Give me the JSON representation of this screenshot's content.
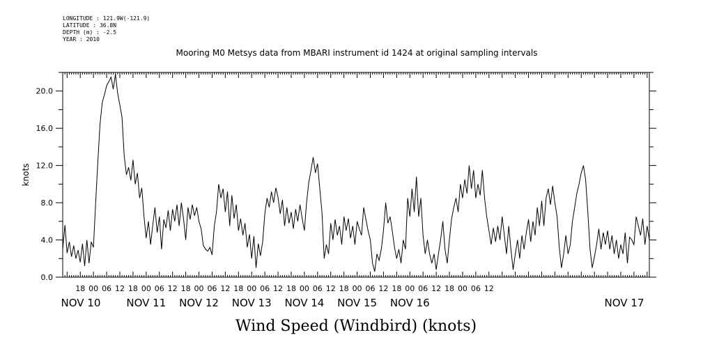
{
  "meta": {
    "longitude": "LONGITUDE : 121.9W(-121.9)",
    "latitude": "LATITUDE : 36.8N",
    "depth": "DEPTH (m) : -2.5",
    "year": "YEAR : 2010"
  },
  "chart_data": {
    "type": "line",
    "title": "Mooring M0 Metsys data from MBARI instrument id 1424 at original sampling intervals",
    "xlabel": "Wind Speed (Windbird) (knots)",
    "ylabel": "knots",
    "ylim": [
      0,
      22
    ],
    "xlim_hours_from_nov10_00": [
      -14,
      253
    ],
    "y_ticks": [
      "0.0",
      "4.0",
      "8.0",
      "12.0",
      "16.0",
      "20.0"
    ],
    "x_hour_ticks": [
      "18",
      "00",
      "06",
      "12",
      "18",
      "00",
      "06",
      "12",
      "18",
      "00",
      "06",
      "12",
      "18",
      "00",
      "06",
      "12",
      "18",
      "00",
      "06",
      "12",
      "18",
      "00",
      "06",
      "12",
      "18",
      "00",
      "06",
      "12",
      "18",
      "00",
      "06",
      "12"
    ],
    "x_day_labels": [
      "NOV 10",
      "NOV 11",
      "NOV 12",
      "NOV 13",
      "NOV 14",
      "NOV 15",
      "NOV 16",
      "NOV 17"
    ],
    "grid": false,
    "series": [
      {
        "x_unit": "hours since NOV 10 00:00",
        "points": [
          [
            -14,
            3.0
          ],
          [
            -13,
            5.6
          ],
          [
            -12,
            2.6
          ],
          [
            -11,
            3.8
          ],
          [
            -10,
            2.2
          ],
          [
            -9,
            3.4
          ],
          [
            -8,
            2.0
          ],
          [
            -7,
            2.9
          ],
          [
            -6,
            1.6
          ],
          [
            -5,
            3.6
          ],
          [
            -4,
            1.2
          ],
          [
            -3,
            4.0
          ],
          [
            -2,
            1.5
          ],
          [
            -1,
            3.8
          ],
          [
            0,
            3.2
          ],
          [
            1,
            8.0
          ],
          [
            2,
            12.5
          ],
          [
            3,
            16.5
          ],
          [
            4,
            18.8
          ],
          [
            5,
            19.6
          ],
          [
            6,
            20.6
          ],
          [
            7,
            21.0
          ],
          [
            8,
            21.5
          ],
          [
            9,
            20.2
          ],
          [
            10,
            21.8
          ],
          [
            11,
            19.8
          ],
          [
            12,
            18.5
          ],
          [
            13,
            17.2
          ],
          [
            14,
            13.0
          ],
          [
            15,
            11.0
          ],
          [
            16,
            11.8
          ],
          [
            17,
            10.4
          ],
          [
            18,
            12.6
          ],
          [
            19,
            10.0
          ],
          [
            20,
            11.2
          ],
          [
            21,
            8.5
          ],
          [
            22,
            9.6
          ],
          [
            23,
            6.5
          ],
          [
            24,
            4.2
          ],
          [
            25,
            6.0
          ],
          [
            26,
            3.5
          ],
          [
            27,
            5.6
          ],
          [
            28,
            7.5
          ],
          [
            29,
            4.8
          ],
          [
            30,
            6.5
          ],
          [
            31,
            3.0
          ],
          [
            32,
            6.2
          ],
          [
            33,
            5.3
          ],
          [
            34,
            7.2
          ],
          [
            35,
            5.0
          ],
          [
            36,
            7.3
          ],
          [
            37,
            6.0
          ],
          [
            38,
            7.8
          ],
          [
            39,
            5.5
          ],
          [
            40,
            8.0
          ],
          [
            41,
            6.3
          ],
          [
            42,
            4.0
          ],
          [
            43,
            7.5
          ],
          [
            44,
            6.2
          ],
          [
            45,
            7.8
          ],
          [
            46,
            6.6
          ],
          [
            47,
            7.5
          ],
          [
            48,
            6.0
          ],
          [
            49,
            5.2
          ],
          [
            50,
            3.4
          ],
          [
            51,
            3.0
          ],
          [
            52,
            2.8
          ],
          [
            53,
            3.2
          ],
          [
            54,
            2.4
          ],
          [
            55,
            5.5
          ],
          [
            56,
            7.0
          ],
          [
            57,
            10.0
          ],
          [
            58,
            8.5
          ],
          [
            59,
            9.5
          ],
          [
            60,
            7.0
          ],
          [
            61,
            9.2
          ],
          [
            62,
            5.5
          ],
          [
            63,
            8.8
          ],
          [
            64,
            6.3
          ],
          [
            65,
            7.8
          ],
          [
            66,
            5.0
          ],
          [
            67,
            6.3
          ],
          [
            68,
            4.5
          ],
          [
            69,
            5.8
          ],
          [
            70,
            3.2
          ],
          [
            71,
            4.6
          ],
          [
            72,
            2.0
          ],
          [
            73,
            4.4
          ],
          [
            74,
            1.0
          ],
          [
            75,
            3.6
          ],
          [
            76,
            2.3
          ],
          [
            77,
            3.8
          ],
          [
            78,
            6.8
          ],
          [
            79,
            8.5
          ],
          [
            80,
            7.5
          ],
          [
            81,
            9.2
          ],
          [
            82,
            8.0
          ],
          [
            83,
            9.6
          ],
          [
            84,
            8.6
          ],
          [
            85,
            6.8
          ],
          [
            86,
            8.3
          ],
          [
            87,
            5.5
          ],
          [
            88,
            7.5
          ],
          [
            89,
            5.8
          ],
          [
            90,
            7.0
          ],
          [
            91,
            5.2
          ],
          [
            92,
            7.3
          ],
          [
            93,
            6.0
          ],
          [
            94,
            7.8
          ],
          [
            95,
            6.3
          ],
          [
            96,
            5.0
          ],
          [
            97,
            8.0
          ],
          [
            98,
            10.2
          ],
          [
            99,
            11.5
          ],
          [
            100,
            12.9
          ],
          [
            101,
            11.2
          ],
          [
            102,
            12.2
          ],
          [
            103,
            9.5
          ],
          [
            104,
            7.0
          ],
          [
            105,
            2.0
          ],
          [
            106,
            3.5
          ],
          [
            107,
            2.5
          ],
          [
            108,
            5.8
          ],
          [
            109,
            4.0
          ],
          [
            110,
            6.2
          ],
          [
            111,
            4.5
          ],
          [
            112,
            5.5
          ],
          [
            113,
            3.5
          ],
          [
            114,
            6.5
          ],
          [
            115,
            5.0
          ],
          [
            116,
            6.3
          ],
          [
            117,
            4.2
          ],
          [
            118,
            5.5
          ],
          [
            119,
            3.5
          ],
          [
            120,
            6.0
          ],
          [
            121,
            5.2
          ],
          [
            122,
            4.5
          ],
          [
            123,
            7.5
          ],
          [
            124,
            6.2
          ],
          [
            125,
            5.0
          ],
          [
            126,
            4.0
          ],
          [
            127,
            1.5
          ],
          [
            128,
            0.6
          ],
          [
            129,
            2.5
          ],
          [
            130,
            1.8
          ],
          [
            131,
            3.0
          ],
          [
            132,
            5.0
          ],
          [
            133,
            8.0
          ],
          [
            134,
            5.8
          ],
          [
            135,
            6.5
          ],
          [
            136,
            5.0
          ],
          [
            137,
            3.2
          ],
          [
            138,
            2.0
          ],
          [
            139,
            3.0
          ],
          [
            140,
            1.5
          ],
          [
            141,
            4.0
          ],
          [
            142,
            3.0
          ],
          [
            143,
            8.5
          ],
          [
            144,
            6.5
          ],
          [
            145,
            9.5
          ],
          [
            146,
            7.0
          ],
          [
            147,
            10.8
          ],
          [
            148,
            6.5
          ],
          [
            149,
            8.5
          ],
          [
            150,
            4.5
          ],
          [
            151,
            2.5
          ],
          [
            152,
            4.0
          ],
          [
            153,
            2.5
          ],
          [
            154,
            1.5
          ],
          [
            155,
            2.5
          ],
          [
            156,
            0.8
          ],
          [
            157,
            2.5
          ],
          [
            158,
            4.0
          ],
          [
            159,
            6.0
          ],
          [
            160,
            3.0
          ],
          [
            161,
            1.5
          ],
          [
            162,
            4.0
          ],
          [
            163,
            6.3
          ],
          [
            164,
            7.5
          ],
          [
            165,
            8.5
          ],
          [
            166,
            7.0
          ],
          [
            167,
            10.0
          ],
          [
            168,
            8.5
          ],
          [
            169,
            10.5
          ],
          [
            170,
            9.0
          ],
          [
            171,
            12.0
          ],
          [
            172,
            9.5
          ],
          [
            173,
            11.5
          ],
          [
            174,
            8.5
          ],
          [
            175,
            10.0
          ],
          [
            176,
            8.8
          ],
          [
            177,
            11.5
          ],
          [
            178,
            8.5
          ],
          [
            179,
            6.5
          ],
          [
            180,
            5.0
          ],
          [
            181,
            3.5
          ],
          [
            182,
            5.3
          ],
          [
            183,
            3.8
          ],
          [
            184,
            5.5
          ],
          [
            185,
            4.0
          ],
          [
            186,
            6.5
          ],
          [
            187,
            4.5
          ],
          [
            188,
            2.5
          ],
          [
            189,
            5.5
          ],
          [
            190,
            3.0
          ],
          [
            191,
            0.8
          ],
          [
            192,
            2.5
          ],
          [
            193,
            4.0
          ],
          [
            194,
            2.0
          ],
          [
            195,
            4.5
          ],
          [
            196,
            3.0
          ],
          [
            197,
            4.8
          ],
          [
            198,
            6.2
          ],
          [
            199,
            3.8
          ],
          [
            200,
            6.0
          ],
          [
            201,
            4.5
          ],
          [
            202,
            7.5
          ],
          [
            203,
            5.5
          ],
          [
            204,
            8.2
          ],
          [
            205,
            5.5
          ],
          [
            206,
            8.5
          ],
          [
            207,
            9.5
          ],
          [
            208,
            7.8
          ],
          [
            209,
            9.8
          ],
          [
            210,
            8.0
          ],
          [
            211,
            6.5
          ],
          [
            212,
            3.2
          ],
          [
            213,
            1.0
          ],
          [
            214,
            2.5
          ],
          [
            215,
            4.5
          ],
          [
            216,
            2.5
          ],
          [
            217,
            3.5
          ],
          [
            218,
            6.0
          ],
          [
            219,
            7.5
          ],
          [
            220,
            9.0
          ],
          [
            221,
            10.0
          ],
          [
            222,
            11.2
          ],
          [
            223,
            12.0
          ],
          [
            224,
            10.5
          ],
          [
            225,
            7.0
          ],
          [
            226,
            3.0
          ],
          [
            227,
            1.0
          ],
          [
            228,
            2.2
          ],
          [
            229,
            3.5
          ],
          [
            230,
            5.2
          ],
          [
            231,
            3.0
          ],
          [
            232,
            4.8
          ],
          [
            233,
            3.5
          ],
          [
            234,
            5.0
          ],
          [
            235,
            3.0
          ],
          [
            236,
            4.5
          ],
          [
            237,
            2.5
          ],
          [
            238,
            4.0
          ],
          [
            239,
            2.0
          ],
          [
            240,
            3.5
          ],
          [
            241,
            2.5
          ],
          [
            242,
            4.8
          ],
          [
            243,
            1.5
          ],
          [
            244,
            4.3
          ],
          [
            245,
            4.0
          ],
          [
            246,
            3.5
          ],
          [
            247,
            6.5
          ],
          [
            248,
            5.5
          ],
          [
            249,
            4.5
          ],
          [
            250,
            6.3
          ],
          [
            251,
            3.5
          ],
          [
            252,
            5.5
          ],
          [
            253,
            4.0
          ]
        ]
      }
    ]
  }
}
